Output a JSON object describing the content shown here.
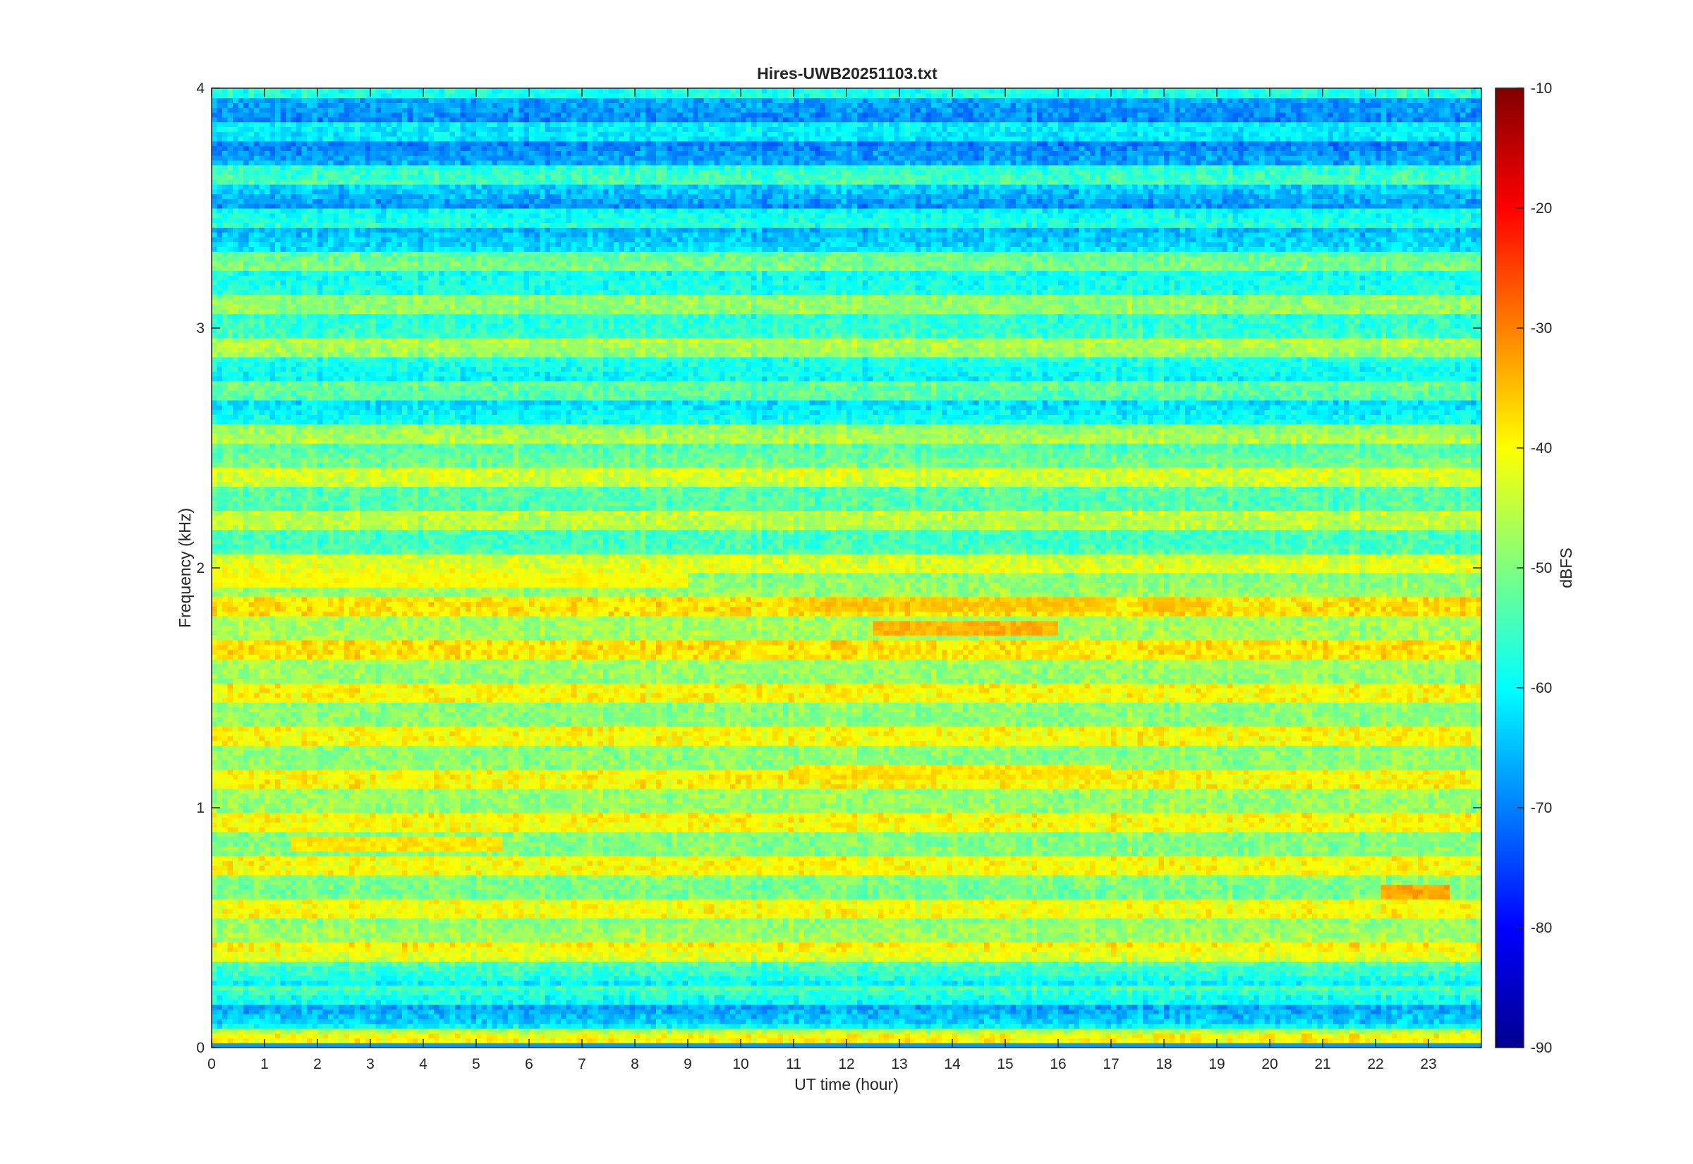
{
  "chart_data": {
    "type": "heatmap",
    "title": "Hires-UWB20251103.txt",
    "xlabel": "UT time (hour)",
    "ylabel": "Frequency (kHz)",
    "colorbar_label": "dBFS",
    "colormap": "jet",
    "xlim": [
      0,
      24
    ],
    "ylim": [
      0,
      4
    ],
    "clim": [
      -90,
      -10
    ],
    "x_ticks": [
      "0",
      "1",
      "2",
      "3",
      "4",
      "5",
      "6",
      "7",
      "8",
      "9",
      "10",
      "11",
      "12",
      "13",
      "14",
      "15",
      "16",
      "17",
      "18",
      "19",
      "20",
      "21",
      "22",
      "23"
    ],
    "y_ticks": [
      "0",
      "1",
      "2",
      "3",
      "4"
    ],
    "colorbar_ticks": [
      "-90",
      "-80",
      "-70",
      "-60",
      "-50",
      "-40",
      "-30",
      "-20",
      "-10"
    ],
    "grid": false,
    "baseline_dbfs_by_frequency_khz": [
      {
        "f": 0.05,
        "v": -44
      },
      {
        "f": 0.1,
        "v": -58
      },
      {
        "f": 0.2,
        "v": -64
      },
      {
        "f": 0.3,
        "v": -52
      },
      {
        "f": 0.45,
        "v": -42
      },
      {
        "f": 0.55,
        "v": -44
      },
      {
        "f": 0.65,
        "v": -46
      },
      {
        "f": 0.75,
        "v": -44
      },
      {
        "f": 0.85,
        "v": -45
      },
      {
        "f": 1.05,
        "v": -43
      },
      {
        "f": 1.15,
        "v": -44
      },
      {
        "f": 1.25,
        "v": -44
      },
      {
        "f": 1.5,
        "v": -44
      },
      {
        "f": 1.65,
        "v": -42
      },
      {
        "f": 1.75,
        "v": -42
      },
      {
        "f": 1.85,
        "v": -42
      },
      {
        "f": 1.95,
        "v": -44
      },
      {
        "f": 2.1,
        "v": -50
      },
      {
        "f": 2.35,
        "v": -48
      },
      {
        "f": 2.45,
        "v": -46
      },
      {
        "f": 2.7,
        "v": -58
      },
      {
        "f": 2.95,
        "v": -50
      },
      {
        "f": 3.05,
        "v": -52
      },
      {
        "f": 3.25,
        "v": -54
      },
      {
        "f": 3.5,
        "v": -64
      },
      {
        "f": 3.6,
        "v": -58
      },
      {
        "f": 3.8,
        "v": -66
      },
      {
        "f": 3.95,
        "v": -62
      }
    ],
    "hot_spots": [
      {
        "t0": 12.5,
        "t1": 16.0,
        "f": 1.75,
        "v": -34
      },
      {
        "t0": 11.0,
        "t1": 17.0,
        "f": 1.85,
        "v": -36
      },
      {
        "t0": 17.6,
        "t1": 18.9,
        "f": 1.85,
        "v": -36
      },
      {
        "t0": 22.1,
        "t1": 23.4,
        "f": 0.65,
        "v": -33
      },
      {
        "t0": 11.0,
        "t1": 17.0,
        "f": 1.15,
        "v": -38
      },
      {
        "t0": 1.5,
        "t1": 5.5,
        "f": 0.85,
        "v": -38
      },
      {
        "t0": 0.0,
        "t1": 9.0,
        "f": 1.95,
        "v": -40
      }
    ]
  }
}
